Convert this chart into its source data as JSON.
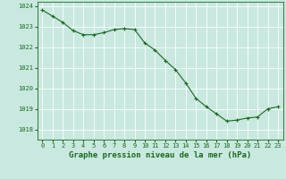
{
  "x": [
    0,
    1,
    2,
    3,
    4,
    5,
    6,
    7,
    8,
    9,
    10,
    11,
    12,
    13,
    14,
    15,
    16,
    17,
    18,
    19,
    20,
    21,
    22,
    23
  ],
  "y": [
    1023.8,
    1023.5,
    1023.2,
    1022.8,
    1022.6,
    1022.6,
    1022.7,
    1022.85,
    1022.9,
    1022.85,
    1022.2,
    1021.85,
    1021.35,
    1020.9,
    1020.25,
    1019.5,
    1019.1,
    1018.75,
    1018.4,
    1018.45,
    1018.55,
    1018.6,
    1019.0,
    1019.1
  ],
  "ylim": [
    1017.5,
    1024.2
  ],
  "yticks": [
    1018,
    1019,
    1020,
    1021,
    1022,
    1023,
    1024
  ],
  "xticks": [
    0,
    1,
    2,
    3,
    4,
    5,
    6,
    7,
    8,
    9,
    10,
    11,
    12,
    13,
    14,
    15,
    16,
    17,
    18,
    19,
    20,
    21,
    22,
    23
  ],
  "xlabel": "Graphe pression niveau de la mer (hPa)",
  "line_color": "#1a6b1a",
  "marker": "+",
  "marker_size": 3,
  "marker_lw": 0.8,
  "line_width": 0.8,
  "bg_color": "#c8e8e0",
  "grid_color": "#ffffff",
  "tick_label_color": "#1a6b1a",
  "xlabel_color": "#1a6b1a",
  "xlabel_fontsize": 6.5,
  "tick_fontsize": 5.0
}
